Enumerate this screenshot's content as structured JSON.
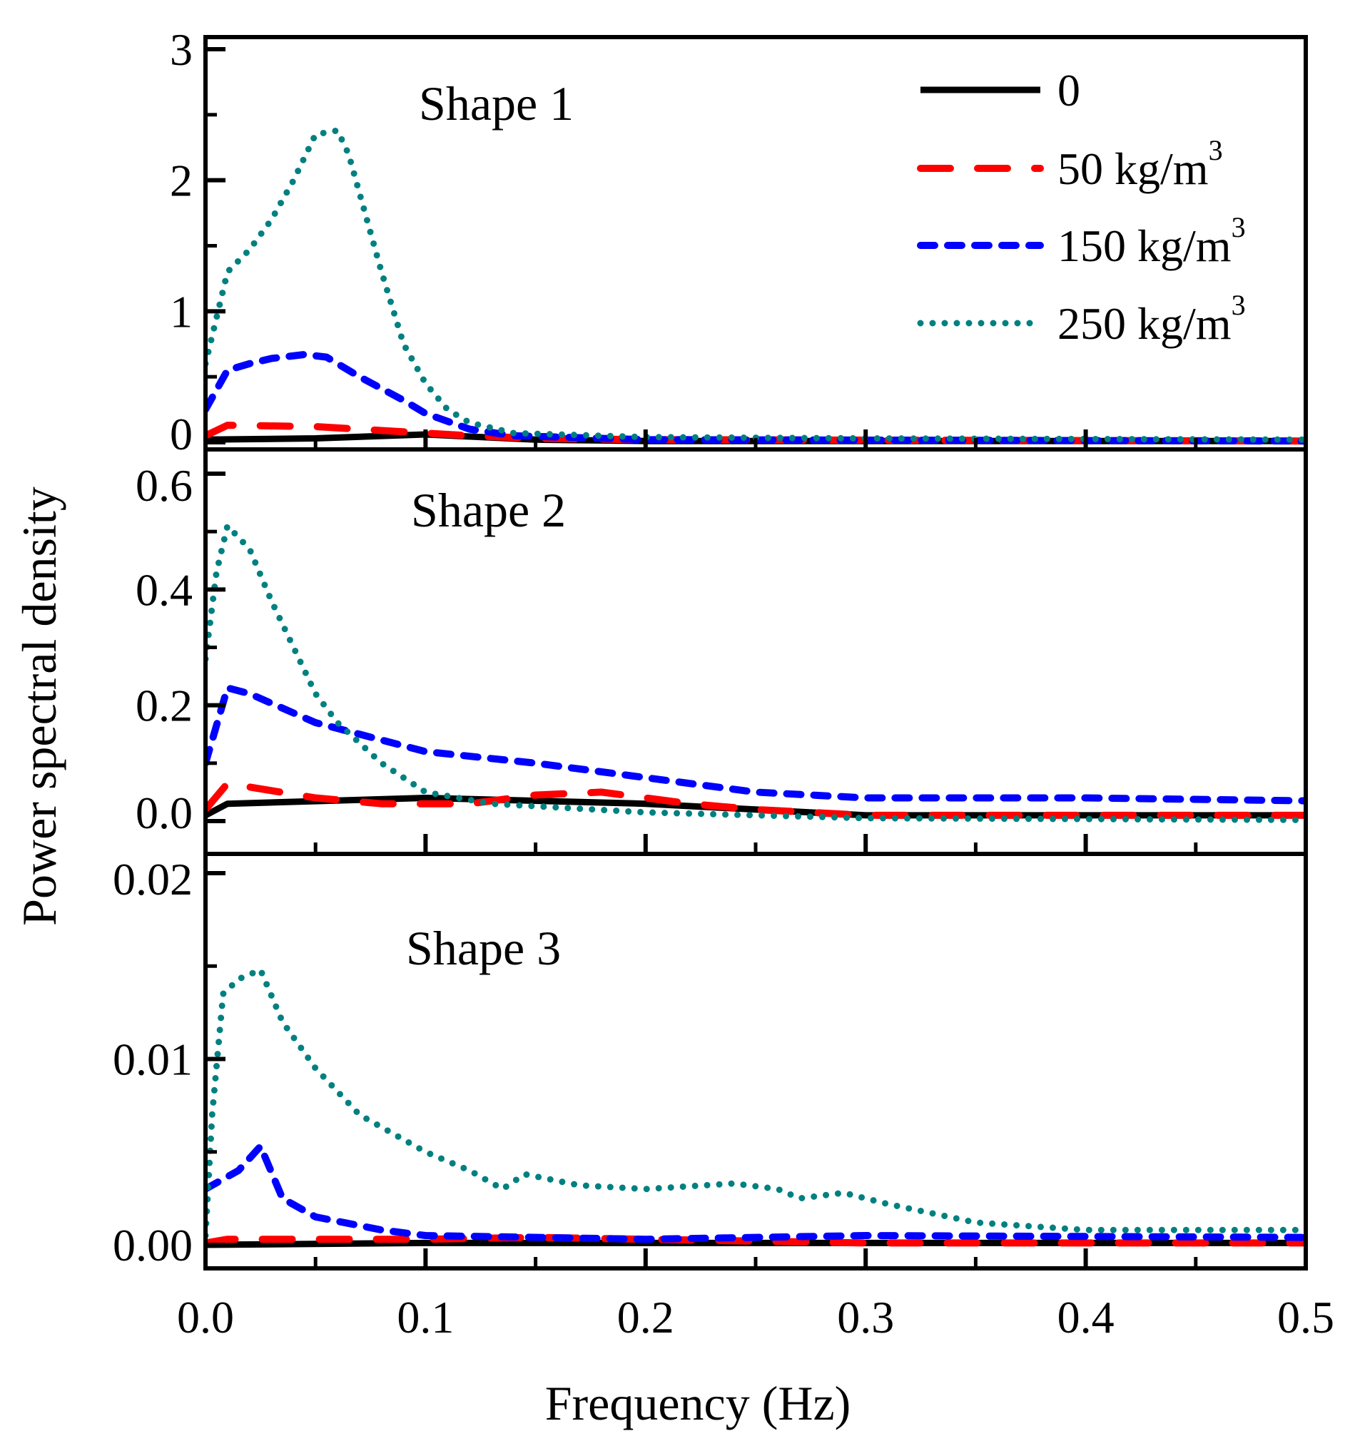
{
  "chart_data": [
    {
      "type": "line",
      "title": "Shape 1",
      "xlim": [
        0,
        0.5
      ],
      "ylim": [
        0,
        3
      ],
      "yticks": [
        0,
        1,
        2,
        3
      ],
      "ytick_labels": [
        "0",
        "1",
        "2",
        "3"
      ],
      "yminor": [
        0.5,
        1.5,
        2.5
      ],
      "series": [
        {
          "name": "0",
          "points": [
            [
              0,
              0.02
            ],
            [
              0.05,
              0.03
            ],
            [
              0.1,
              0.06
            ],
            [
              0.15,
              0.02
            ],
            [
              0.2,
              0.01
            ],
            [
              0.5,
              0.01
            ]
          ]
        },
        {
          "name": "50 kg/m3",
          "points": [
            [
              0,
              0.05
            ],
            [
              0.01,
              0.13
            ],
            [
              0.05,
              0.12
            ],
            [
              0.1,
              0.07
            ],
            [
              0.12,
              0.05
            ],
            [
              0.15,
              0.03
            ],
            [
              0.2,
              0.02
            ],
            [
              0.5,
              0.01
            ]
          ]
        },
        {
          "name": "150 kg/m3",
          "points": [
            [
              0,
              0.25
            ],
            [
              0.01,
              0.55
            ],
            [
              0.02,
              0.6
            ],
            [
              0.03,
              0.64
            ],
            [
              0.045,
              0.67
            ],
            [
              0.055,
              0.65
            ],
            [
              0.07,
              0.5
            ],
            [
              0.09,
              0.32
            ],
            [
              0.1,
              0.22
            ],
            [
              0.12,
              0.1
            ],
            [
              0.14,
              0.05
            ],
            [
              0.2,
              0.02
            ],
            [
              0.5,
              0.01
            ]
          ]
        },
        {
          "name": "250 kg/m3",
          "points": [
            [
              0,
              0.6
            ],
            [
              0.005,
              0.95
            ],
            [
              0.01,
              1.3
            ],
            [
              0.02,
              1.47
            ],
            [
              0.03,
              1.7
            ],
            [
              0.04,
              2.0
            ],
            [
              0.05,
              2.35
            ],
            [
              0.06,
              2.38
            ],
            [
              0.065,
              2.2
            ],
            [
              0.07,
              1.9
            ],
            [
              0.08,
              1.3
            ],
            [
              0.09,
              0.75
            ],
            [
              0.1,
              0.45
            ],
            [
              0.11,
              0.25
            ],
            [
              0.12,
              0.15
            ],
            [
              0.14,
              0.07
            ],
            [
              0.2,
              0.04
            ],
            [
              0.3,
              0.03
            ],
            [
              0.5,
              0.02
            ]
          ]
        }
      ]
    },
    {
      "type": "line",
      "title": "Shape 2",
      "xlim": [
        0,
        0.5
      ],
      "ylim": [
        -0.015,
        0.68
      ],
      "yticks": [
        0,
        0.2,
        0.4,
        0.6
      ],
      "ytick_labels": [
        "0.0",
        "0.2",
        "0.4",
        "0.6"
      ],
      "yminor": [
        0.1,
        0.3,
        0.5
      ],
      "series": [
        {
          "name": "0",
          "points": [
            [
              0,
              0.01
            ],
            [
              0.01,
              0.03
            ],
            [
              0.1,
              0.04
            ],
            [
              0.2,
              0.03
            ],
            [
              0.3,
              0.01
            ],
            [
              0.5,
              0.01
            ]
          ]
        },
        {
          "name": "50 kg/m3",
          "points": [
            [
              0,
              0.02
            ],
            [
              0.01,
              0.065
            ],
            [
              0.05,
              0.04
            ],
            [
              0.08,
              0.03
            ],
            [
              0.12,
              0.03
            ],
            [
              0.15,
              0.045
            ],
            [
              0.18,
              0.05
            ],
            [
              0.2,
              0.04
            ],
            [
              0.22,
              0.03
            ],
            [
              0.25,
              0.02
            ],
            [
              0.3,
              0.01
            ],
            [
              0.5,
              0.01
            ]
          ]
        },
        {
          "name": "150 kg/m3",
          "points": [
            [
              0,
              0.1
            ],
            [
              0.01,
              0.23
            ],
            [
              0.02,
              0.22
            ],
            [
              0.05,
              0.17
            ],
            [
              0.1,
              0.12
            ],
            [
              0.15,
              0.1
            ],
            [
              0.2,
              0.075
            ],
            [
              0.25,
              0.05
            ],
            [
              0.3,
              0.04
            ],
            [
              0.4,
              0.04
            ],
            [
              0.5,
              0.035
            ]
          ]
        },
        {
          "name": "250 kg/m3",
          "points": [
            [
              0,
              0.28
            ],
            [
              0.005,
              0.43
            ],
            [
              0.01,
              0.51
            ],
            [
              0.02,
              0.47
            ],
            [
              0.03,
              0.38
            ],
            [
              0.04,
              0.3
            ],
            [
              0.05,
              0.22
            ],
            [
              0.06,
              0.17
            ],
            [
              0.08,
              0.1
            ],
            [
              0.1,
              0.05
            ],
            [
              0.13,
              0.03
            ],
            [
              0.2,
              0.015
            ],
            [
              0.3,
              0.005
            ],
            [
              0.5,
              0.002
            ]
          ]
        }
      ]
    },
    {
      "type": "line",
      "title": "Shape 3",
      "xlim": [
        0,
        0.5
      ],
      "ylim": [
        -0.001,
        0.021
      ],
      "yticks": [
        0,
        0.01,
        0.02
      ],
      "ytick_labels": [
        "0.00",
        "0.01",
        "0.02"
      ],
      "yminor": [
        0.005,
        0.015
      ],
      "xticks": [
        0,
        0.1,
        0.2,
        0.3,
        0.4,
        0.5
      ],
      "xtick_labels": [
        "0.0",
        "0.1",
        "0.2",
        "0.3",
        "0.4",
        "0.5"
      ],
      "series": [
        {
          "name": "0",
          "points": [
            [
              0,
              0
            ],
            [
              0.1,
              0.0001
            ],
            [
              0.5,
              0.0001
            ]
          ]
        },
        {
          "name": "50 kg/m3",
          "points": [
            [
              0,
              0.0001
            ],
            [
              0.01,
              0.0003
            ],
            [
              0.1,
              0.0003
            ],
            [
              0.15,
              0.0004
            ],
            [
              0.2,
              0.0003
            ],
            [
              0.3,
              0.0001
            ],
            [
              0.5,
              0.0001
            ]
          ]
        },
        {
          "name": "150 kg/m3",
          "points": [
            [
              0,
              0.003
            ],
            [
              0.015,
              0.004
            ],
            [
              0.025,
              0.0053
            ],
            [
              0.035,
              0.0025
            ],
            [
              0.05,
              0.0015
            ],
            [
              0.08,
              0.0008
            ],
            [
              0.1,
              0.0005
            ],
            [
              0.2,
              0.0003
            ],
            [
              0.3,
              0.0005
            ],
            [
              0.5,
              0.0004
            ]
          ]
        },
        {
          "name": "250 kg/m3",
          "points": [
            [
              0,
              0.0005
            ],
            [
              0.003,
              0.007
            ],
            [
              0.008,
              0.0135
            ],
            [
              0.015,
              0.0143
            ],
            [
              0.025,
              0.0148
            ],
            [
              0.035,
              0.012
            ],
            [
              0.05,
              0.0095
            ],
            [
              0.07,
              0.007
            ],
            [
              0.1,
              0.005
            ],
            [
              0.12,
              0.004
            ],
            [
              0.135,
              0.003
            ],
            [
              0.145,
              0.0038
            ],
            [
              0.17,
              0.0032
            ],
            [
              0.2,
              0.003
            ],
            [
              0.24,
              0.0033
            ],
            [
              0.26,
              0.003
            ],
            [
              0.27,
              0.0025
            ],
            [
              0.29,
              0.0028
            ],
            [
              0.31,
              0.0022
            ],
            [
              0.35,
              0.0012
            ],
            [
              0.4,
              0.0008
            ],
            [
              0.5,
              0.0008
            ]
          ]
        }
      ]
    }
  ],
  "xlabel": "Frequency (Hz)",
  "ylabel": "Power spectral density",
  "legend": {
    "placement": "top-right",
    "entries": [
      {
        "label": "0",
        "sup": "",
        "color": "#000000",
        "style": "solid"
      },
      {
        "label": "50 kg/m",
        "sup": "3",
        "color": "#ff0000",
        "style": "dash"
      },
      {
        "label": "150 kg/m",
        "sup": "3",
        "color": "#0000ff",
        "style": "short-dash"
      },
      {
        "label": "250 kg/m",
        "sup": "3",
        "color": "#008080",
        "style": "dot"
      }
    ]
  }
}
